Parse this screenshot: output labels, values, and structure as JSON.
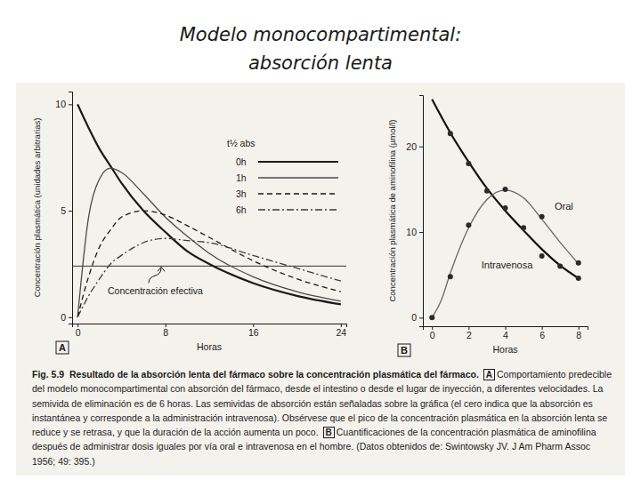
{
  "header": {
    "title_lines": [
      "Modelo monocompartimental:",
      "absorción lenta"
    ]
  },
  "chart_data": [
    {
      "type": "line",
      "panel": "A",
      "x_label": "Horas",
      "y_label": "Concentración plasmática (unidades arbitrarias)",
      "x": [
        0,
        1,
        2,
        3,
        4,
        6,
        8,
        10,
        12,
        16,
        20,
        24
      ],
      "xlim": [
        -0.5,
        24.5
      ],
      "xticks": [
        0,
        8,
        16,
        24
      ],
      "ylim": [
        -0.3,
        10.6
      ],
      "yticks": [
        0,
        5,
        10
      ],
      "legend": "upper right",
      "legend_title": "t½ abs",
      "series": [
        {
          "name": "0h",
          "color": "#1a1a1a",
          "line_style": "solid",
          "values": [
            10,
            8.9,
            7.9,
            7.1,
            6.3,
            5.0,
            4.0,
            3.1,
            2.5,
            1.6,
            1.0,
            0.6
          ]
        },
        {
          "name": "1h",
          "color": "#4a4a4a",
          "line_style": "solid",
          "values": [
            0,
            4.7,
            6.5,
            7.0,
            6.8,
            5.8,
            4.7,
            3.8,
            3.0,
            1.9,
            1.2,
            0.75
          ]
        },
        {
          "name": "3h",
          "color": "#1a1a1a",
          "line_style": "dashed",
          "values": [
            0,
            1.9,
            3.3,
            4.1,
            4.7,
            5.0,
            4.8,
            4.3,
            3.75,
            2.65,
            1.8,
            1.2
          ]
        },
        {
          "name": "6h",
          "color": "#3a3a3a",
          "line_style": "dashdot",
          "values": [
            0,
            1.0,
            1.8,
            2.5,
            2.9,
            3.5,
            3.7,
            3.6,
            3.5,
            2.9,
            2.3,
            1.7
          ]
        }
      ],
      "reference_line": {
        "label": "Concentración efectiva",
        "value": 2.4
      }
    },
    {
      "type": "scatter",
      "panel": "B",
      "x_label": "Horas",
      "y_label": "Concentración plasmática de aminofilina (µmol/l)",
      "xlim": [
        -0.5,
        8.5
      ],
      "xticks": [
        0,
        2,
        4,
        6,
        8
      ],
      "ylim": [
        -1,
        26
      ],
      "yticks": [
        0,
        10,
        20
      ],
      "series": [
        {
          "name": "Intravenosa",
          "color": "#111111",
          "marker": "circle",
          "x": [
            1,
            2,
            3,
            4,
            5,
            6,
            7,
            8
          ],
          "values": [
            21.5,
            18.0,
            14.8,
            12.8,
            10.5,
            7.2,
            6.0,
            4.6
          ],
          "fit_x": [
            0,
            1,
            2,
            3,
            4,
            5,
            6,
            7,
            8
          ],
          "fit_values": [
            25.5,
            21.6,
            18.2,
            15.1,
            12.5,
            10.2,
            8.0,
            6.1,
            4.6
          ]
        },
        {
          "name": "Oral",
          "color": "#666666",
          "marker": "circle",
          "x": [
            0,
            1,
            2,
            4,
            6,
            8
          ],
          "values": [
            0,
            4.8,
            10.8,
            15.0,
            11.8,
            6.4
          ],
          "fit_x": [
            0,
            0.5,
            1,
            2,
            3,
            4,
            5,
            6,
            7,
            8
          ],
          "fit_values": [
            0,
            2.0,
            5.2,
            10.5,
            13.8,
            14.9,
            14.0,
            11.5,
            8.8,
            6.3
          ]
        }
      ]
    }
  ],
  "caption": {
    "figure": "Fig. 5.9",
    "title": "Resultado de la absorción lenta del fármaco sobre la concentración plasmática del fármaco.",
    "parts": [
      {
        "panel": "A",
        "text": "Comportamiento predecible del modelo monocompartimental con absorción del fármaco, desde el intestino o desde el lugar de inyección, a diferentes velocidades. La semivida de eliminación es de 6 horas. Las semividas de absorción están señaladas sobre la gráfica (el cero indica que la absorción es instantánea y corresponde a la administración intravenosa). Obsérvese que el pico de la concentración plasmática en la absorción lenta se reduce y se retrasa, y que la duración de la acción aumenta un poco."
      },
      {
        "panel": "B",
        "text": "Cuantificaciones de la concentración plasmática de aminofilina después de administrar dosis iguales por vía oral e intravenosa en el hombre. (Datos obtenidos de: Swintowsky JV. J Am Pharm Assoc 1956; 49: 395.)"
      }
    ]
  }
}
